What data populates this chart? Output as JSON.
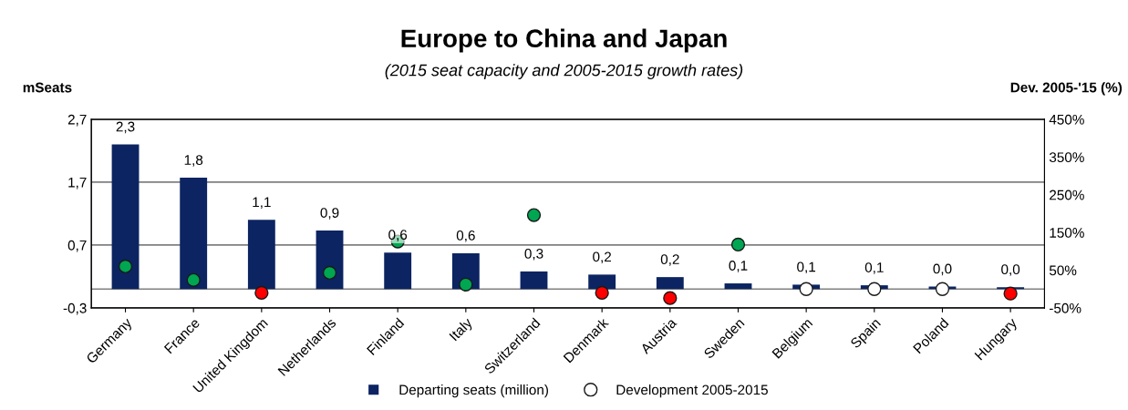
{
  "chart_data": {
    "type": "bar",
    "title": "Europe to China and Japan",
    "subtitle": "(2015 seat capacity and 2005-2015 growth rates)",
    "ylabel": "mSeats",
    "y2label": "Dev. 2005-'15 (%)",
    "categories": [
      "Germany",
      "France",
      "United Kingdom",
      "Netherlands",
      "Finland",
      "Italy",
      "Switzerland",
      "Denmark",
      "Austria",
      "Sweden",
      "Belgium",
      "Spain",
      "Poland",
      "Hungary"
    ],
    "series": [
      {
        "name": "Departing seats (million)",
        "color": "#0c2461",
        "values": [
          2.3,
          1.77,
          1.1,
          0.93,
          0.58,
          0.57,
          0.28,
          0.23,
          0.19,
          0.09,
          0.07,
          0.06,
          0.04,
          0.03
        ],
        "value_labels": [
          "2,3",
          "1,8",
          "1,1",
          "0,9",
          "0,6",
          "0,6",
          "0,3",
          "0,2",
          "0,2",
          "0,1",
          "0,1",
          "0,1",
          "0,0",
          "0,0"
        ]
      },
      {
        "name": "Development 2005-2015",
        "type": "scatter",
        "axis": "y2",
        "color": "#ffffff",
        "colors": [
          "#00a651",
          "#00a651",
          "#ff0000",
          "#00a651",
          "#00a651",
          "#00a651",
          "#00a651",
          "#ff0000",
          "#ff0000",
          "#00a651",
          "#ffffff",
          "#ffffff",
          "#ffffff",
          "#ff0000"
        ],
        "values": [
          60,
          24,
          -10,
          43,
          126,
          12,
          196,
          -10,
          -24,
          118,
          0,
          0,
          0,
          -12
        ]
      }
    ],
    "ylim": [
      -0.3,
      2.7
    ],
    "yticks": [
      {
        "value": -0.3,
        "label": "-0,3"
      },
      {
        "value": 0.7,
        "label": "0,7"
      },
      {
        "value": 1.7,
        "label": "1,7"
      },
      {
        "value": 2.7,
        "label": "2,7"
      }
    ],
    "y2lim": [
      -50,
      450
    ],
    "y2ticks": [
      {
        "value": -50,
        "label": "-50%"
      },
      {
        "value": 50,
        "label": "50%"
      },
      {
        "value": 150,
        "label": "150%"
      },
      {
        "value": 250,
        "label": "250%"
      },
      {
        "value": 350,
        "label": "350%"
      },
      {
        "value": 450,
        "label": "450%"
      }
    ],
    "grid": "y",
    "legend": "bottom",
    "marker": "circle"
  }
}
